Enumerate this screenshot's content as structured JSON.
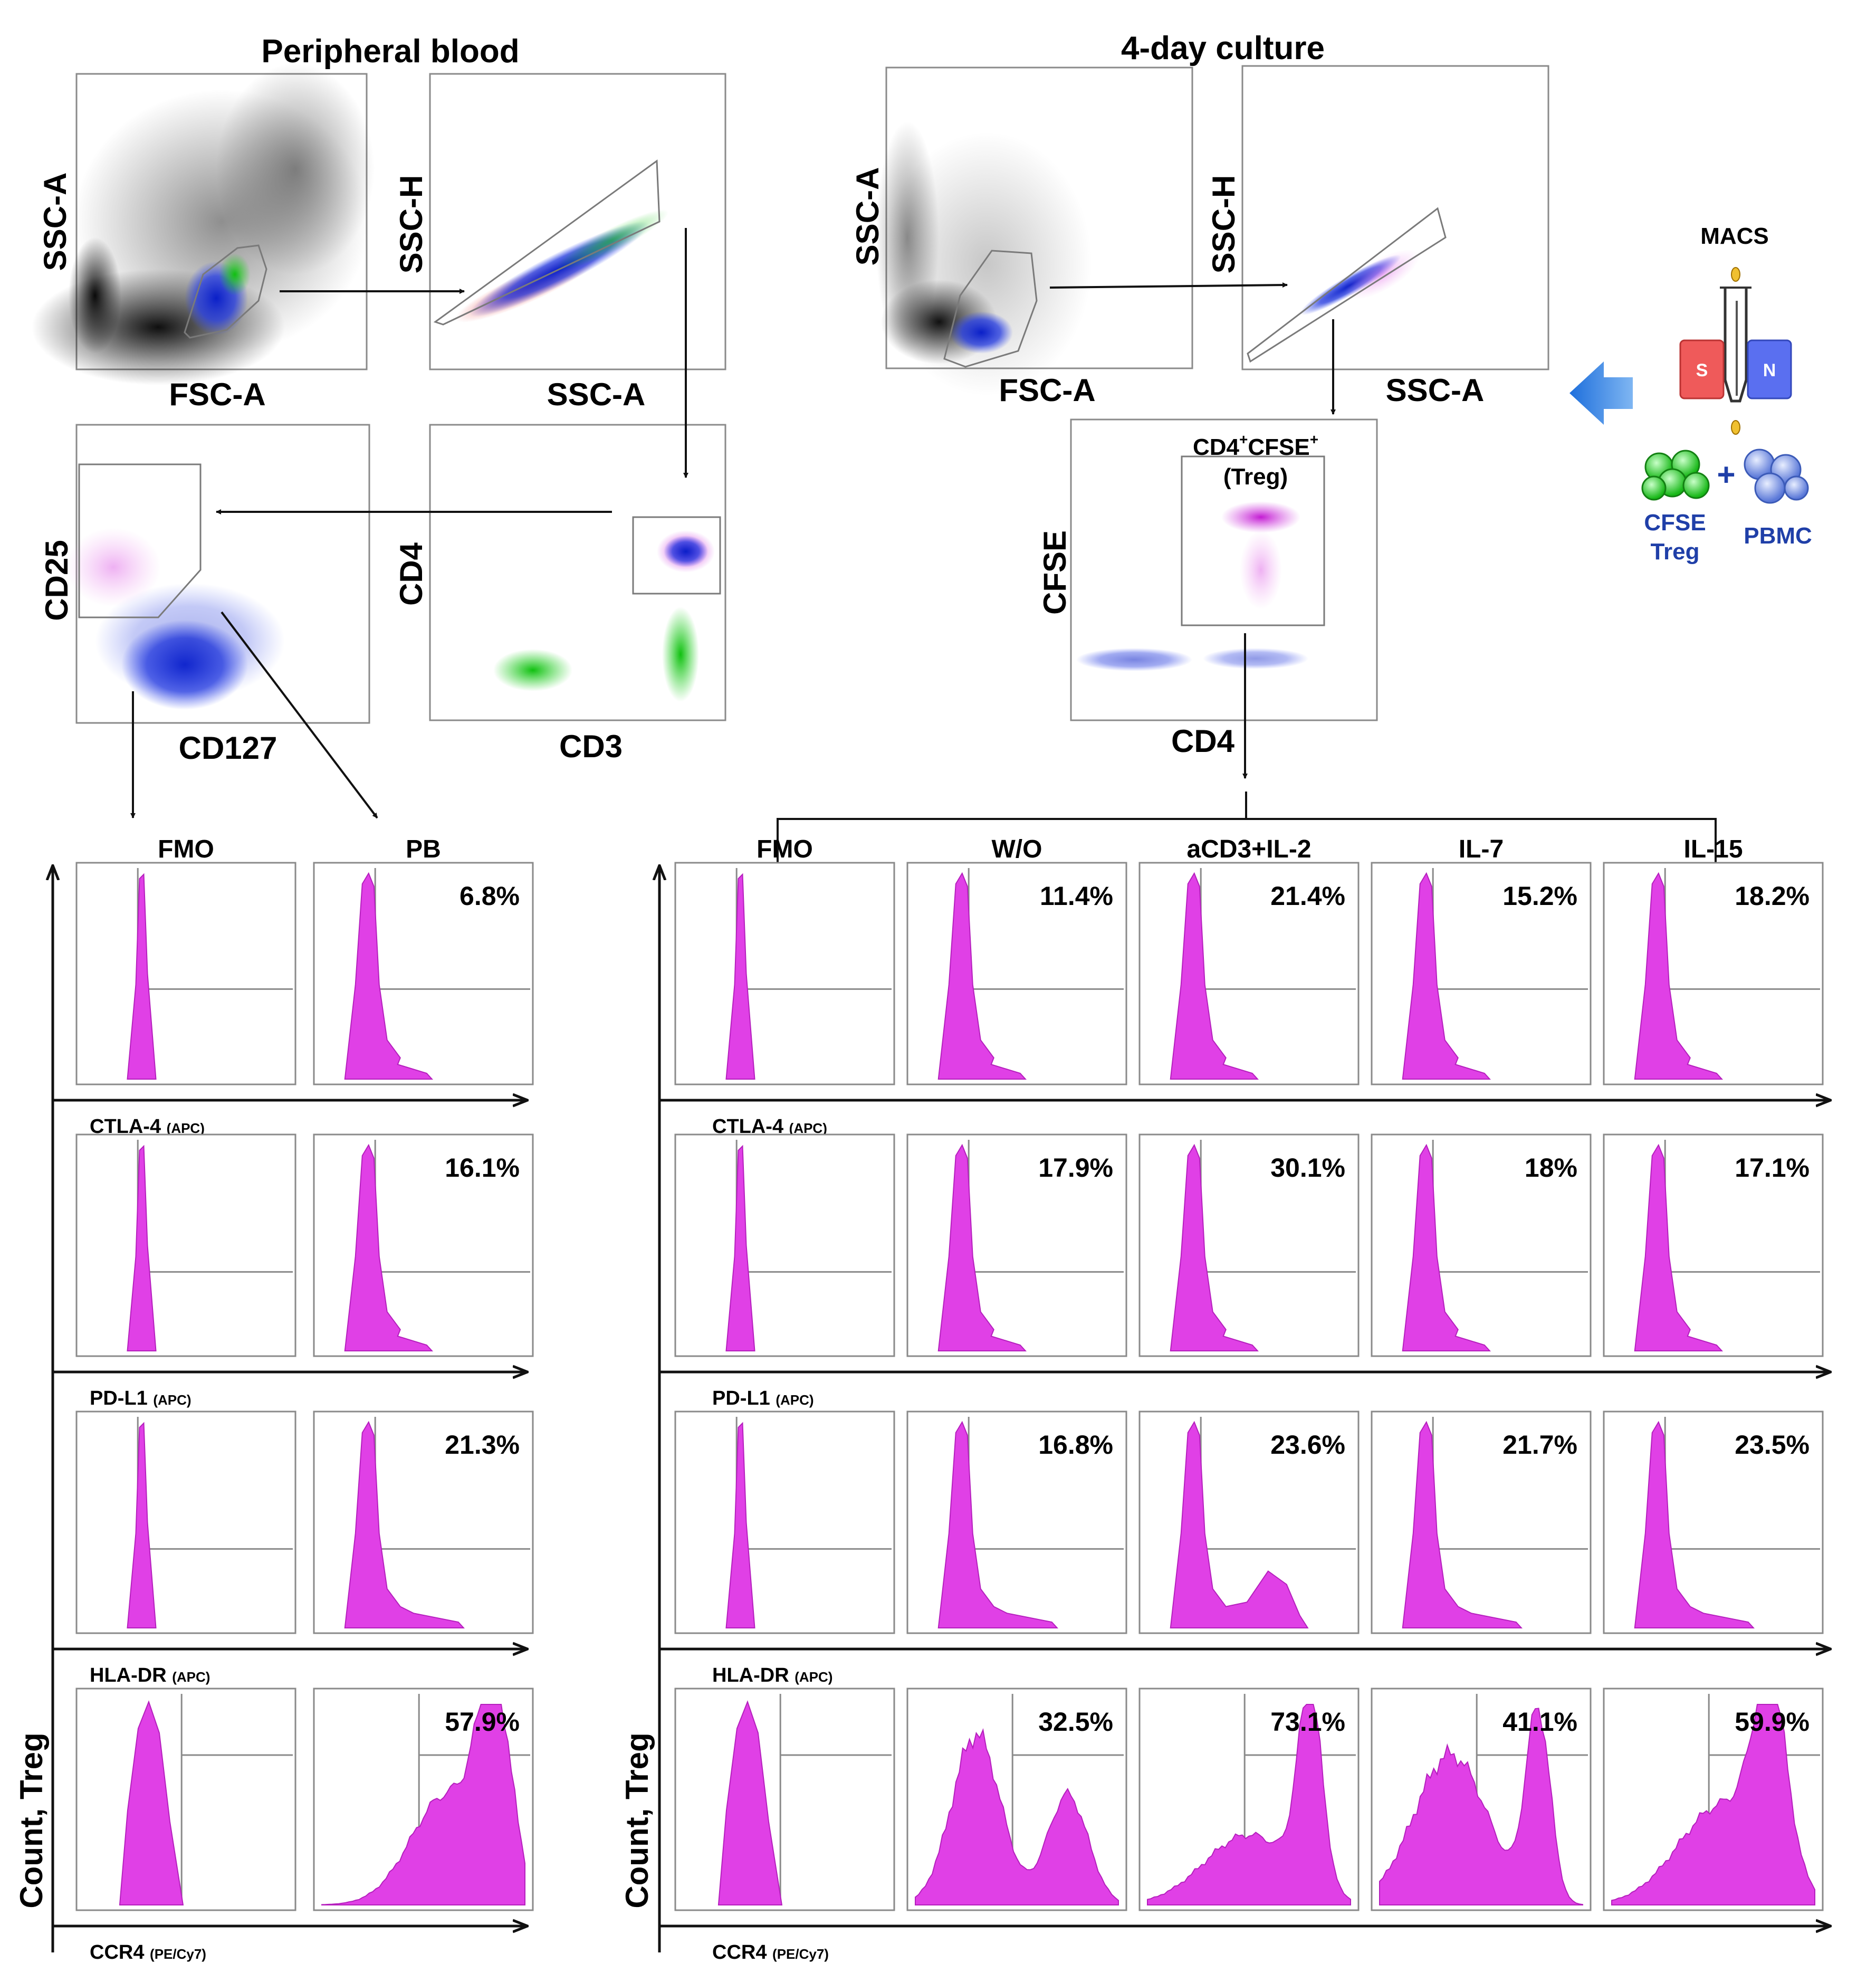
{
  "sections": {
    "left_title": "Peripheral blood",
    "right_title": "4-day culture"
  },
  "gating_axes": {
    "ssc_a": "SSC-A",
    "fsc_a": "FSC-A",
    "ssc_h": "SSC-H",
    "cd4": "CD4",
    "cd3": "CD3",
    "cd25": "CD25",
    "cd127": "CD127",
    "cfse": "CFSE"
  },
  "gate_label": {
    "line1_main": "CD4",
    "line1_sup1": "+",
    "line1_mid": "CFSE",
    "line1_sup2": "+",
    "line2": "(Treg)"
  },
  "macs": {
    "title": "MACS",
    "magnet_s": "S",
    "magnet_n": "N",
    "plus": "+",
    "cfse_label": "CFSE",
    "treg_label": "Treg",
    "pbmc_label": "PBMC"
  },
  "columns": {
    "left": [
      "FMO",
      "PB"
    ],
    "right": [
      "FMO",
      "W/O",
      "aCD3+IL-2",
      "IL-7",
      "IL-15"
    ]
  },
  "y_axis_label": "Count, Treg",
  "markers": [
    {
      "name": "CTLA-4",
      "sub": "(APC)"
    },
    {
      "name": "PD-L1",
      "sub": "(APC)"
    },
    {
      "name": "HLA-DR",
      "sub": "(APC)"
    },
    {
      "name": "CCR4",
      "sub": "(PE/Cy7)"
    }
  ],
  "percentages": {
    "left_pb": [
      "6.8%",
      "16.1%",
      "21.3%",
      "57.9%"
    ],
    "right": [
      [
        "11.4%",
        "21.4%",
        "15.2%",
        "18.2%"
      ],
      [
        "17.9%",
        "30.1%",
        "18%",
        "17.1%"
      ],
      [
        "16.8%",
        "23.6%",
        "21.7%",
        "23.5%"
      ],
      [
        "32.5%",
        "73.1%",
        "41.1%",
        "59.9%"
      ]
    ]
  },
  "colors": {
    "histogram": "#e040e6",
    "blue_population": "#1a2fd6",
    "green_population": "#19c619",
    "red_population": "#e03030",
    "magenta_population": "#d020d8",
    "arrow_blue": "#2f7fe0",
    "magnet_s": "#ef5a5a",
    "magnet_n": "#5a6ff0"
  }
}
